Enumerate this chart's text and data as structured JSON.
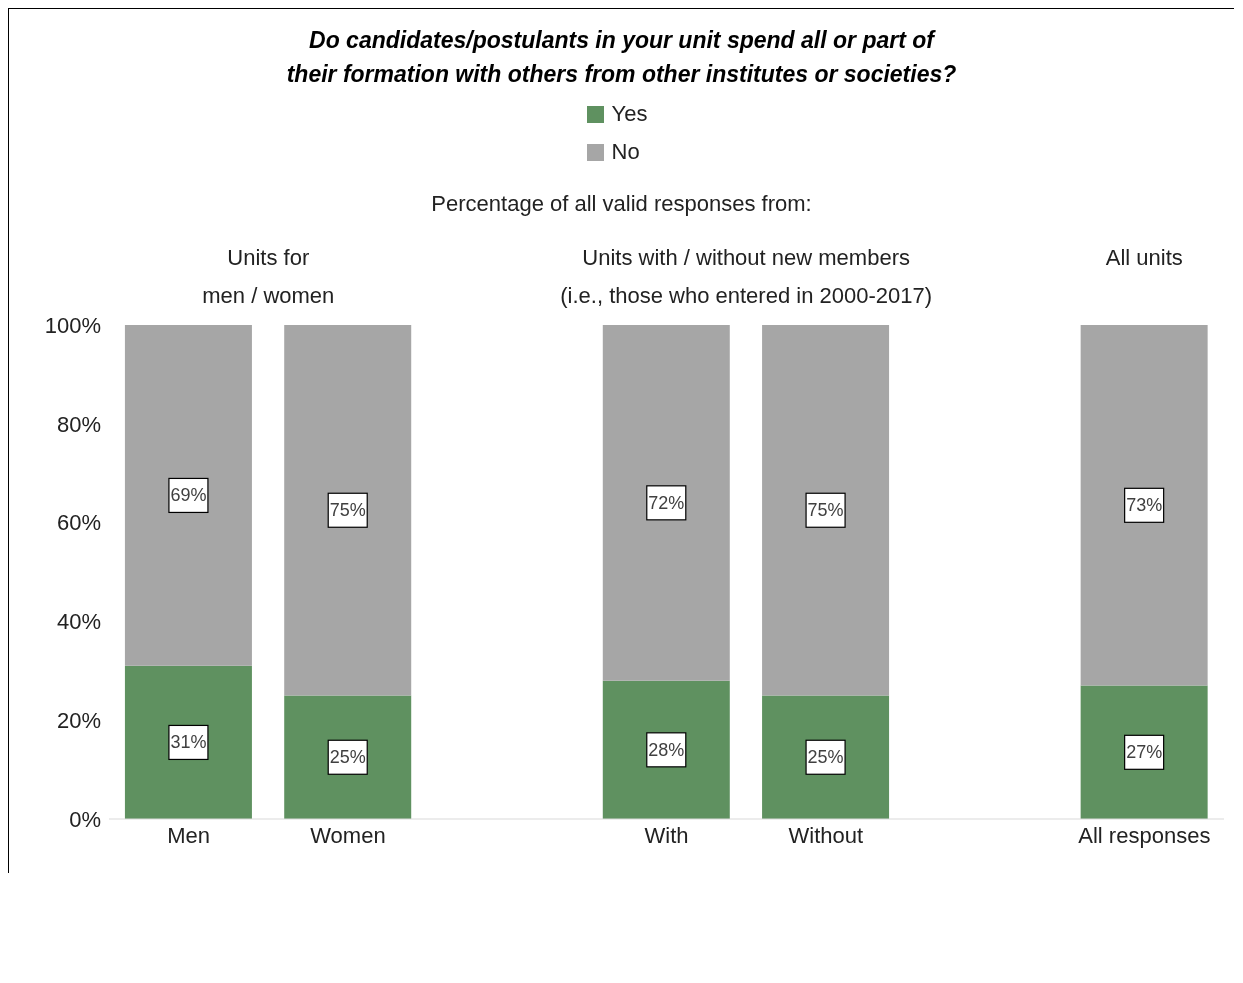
{
  "chart_data": {
    "type": "bar",
    "stacked": true,
    "title": "Do candidates/postulants  in your unit spend all or part of\ntheir formation with others from other institutes or societies?",
    "subtitle": "Percentage of all valid responses from:",
    "annotations": [
      "Units for\nmen / women",
      "Units with / without new members\n(i.e., those who entered in 2000-2017)",
      "All units"
    ],
    "categories": [
      "Men",
      "Women",
      null,
      "With",
      "Without",
      null,
      "All responses"
    ],
    "series": [
      {
        "name": "Yes",
        "color": "#5f9160",
        "values": [
          31,
          25,
          null,
          28,
          25,
          null,
          27
        ],
        "value_labels": [
          "31%",
          "25%",
          null,
          "28%",
          "25%",
          null,
          "27%"
        ]
      },
      {
        "name": "No",
        "color": "#a6a6a6",
        "values": [
          69,
          75,
          null,
          72,
          75,
          null,
          73
        ],
        "value_labels": [
          "69%",
          "75%",
          null,
          "72%",
          "75%",
          null,
          "73%"
        ]
      }
    ],
    "ylim": [
      0,
      100
    ],
    "yticks": [
      {
        "value": 0,
        "label": "0%"
      },
      {
        "value": 20,
        "label": "20%"
      },
      {
        "value": 40,
        "label": "40%"
      },
      {
        "value": 60,
        "label": "60%"
      },
      {
        "value": 80,
        "label": "80%"
      },
      {
        "value": 100,
        "label": "100%"
      }
    ],
    "grid": false,
    "legend": "top"
  }
}
